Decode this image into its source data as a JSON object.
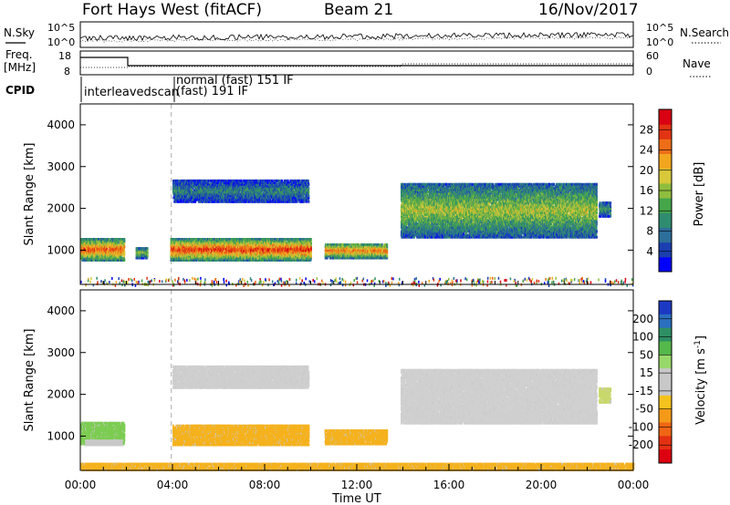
{
  "header": {
    "station": "Fort Hays West (fitACF)",
    "beam": "Beam 21",
    "date": "16/Nov/2017"
  },
  "sky_panel": {
    "left_label": "N.Sky",
    "right_label": "N.Search",
    "tick_top": "10^5",
    "tick_bottom": "10^0",
    "tick_top_right": "10^5",
    "tick_bottom_right": "10^0"
  },
  "freq_panel": {
    "left_label_line1": "Freq.",
    "left_label_line2": "[MHz]",
    "right_label": "Nave",
    "left_ticks": [
      "18",
      "8"
    ],
    "right_ticks": [
      "60",
      "0"
    ]
  },
  "cpid_panel": {
    "label": "CPID",
    "modes": [
      "interleavedscan",
      "normal (fast) 151 IF",
      "(fast) 191 IF"
    ]
  },
  "chart_data": [
    {
      "type": "heatmap",
      "panel": "power",
      "ylabel": "Slant Range [km]",
      "xlabel": "",
      "xlim": [
        0,
        24
      ],
      "ylim": [
        180,
        4500
      ],
      "y_ticks": [
        1000,
        2000,
        3000,
        4000
      ],
      "colorbar": {
        "label": "Power [dB]",
        "ticks": [
          "4",
          "8",
          "12",
          "16",
          "20",
          "24",
          "28"
        ],
        "colors": [
          "#0000ff",
          "#1a3fb0",
          "#2d6e9a",
          "#2f8c6e",
          "#45a64a",
          "#8fbd3e",
          "#d8c83a",
          "#f2a61e",
          "#ee6e18",
          "#e23414",
          "#d80012"
        ]
      },
      "regions": [
        {
          "t0": 0.0,
          "t1": 1.9,
          "r0": 750,
          "r1": 1250,
          "level": 0.7
        },
        {
          "t0": 2.4,
          "t1": 2.9,
          "r0": 800,
          "r1": 1050,
          "level": 0.4
        },
        {
          "t0": 3.9,
          "t1": 10.0,
          "r0": 750,
          "r1": 1250,
          "level": 0.75
        },
        {
          "t0": 4.0,
          "t1": 9.9,
          "r0": 2150,
          "r1": 2650,
          "level": 0.25
        },
        {
          "t0": 10.6,
          "t1": 13.3,
          "r0": 800,
          "r1": 1150,
          "level": 0.65
        },
        {
          "t0": 13.9,
          "t1": 22.4,
          "r0": 1300,
          "r1": 2600,
          "level": 0.45
        },
        {
          "t0": 22.5,
          "t1": 23.0,
          "r0": 1800,
          "r1": 2150,
          "level": 0.3
        }
      ]
    },
    {
      "type": "heatmap",
      "panel": "velocity",
      "ylabel": "Slant Range [km]",
      "xlabel": "Time UT",
      "xlim": [
        0,
        24
      ],
      "ylim": [
        180,
        4500
      ],
      "y_ticks": [
        1000,
        2000,
        3000,
        4000
      ],
      "x_ticks": [
        "00:00",
        "04:00",
        "08:00",
        "12:00",
        "16:00",
        "20:00",
        "00:00"
      ],
      "colorbar": {
        "label": "Velocity [m s^-1]",
        "ticks": [
          "200",
          "100",
          "50",
          "15",
          "-15",
          "-50",
          "-100",
          "-200"
        ],
        "colors": [
          "#1c39c4",
          "#2b6fbf",
          "#2e8f64",
          "#55b84a",
          "#98d86a",
          "#c8c8c8",
          "#c8c8c8",
          "#f5c21e",
          "#f59a18",
          "#ef6614",
          "#e43012",
          "#dc0010"
        ]
      },
      "regions": [
        {
          "t0": 0.0,
          "t1": 1.9,
          "r0": 800,
          "r1": 1300,
          "color": "#7ccd52"
        },
        {
          "t0": 0.2,
          "t1": 1.8,
          "r0": 780,
          "r1": 900,
          "color": "#c8c8c8"
        },
        {
          "t0": 4.0,
          "t1": 9.9,
          "r0": 780,
          "r1": 1250,
          "color": "#f5b21e"
        },
        {
          "t0": 4.0,
          "t1": 9.9,
          "r0": 2150,
          "r1": 2650,
          "color": "#cfcfcf"
        },
        {
          "t0": 10.6,
          "t1": 13.3,
          "r0": 800,
          "r1": 1150,
          "color": "#f5b21e"
        },
        {
          "t0": 13.9,
          "t1": 22.4,
          "r0": 1300,
          "r1": 2600,
          "color": "#d0d0d0"
        },
        {
          "t0": 22.5,
          "t1": 23.0,
          "r0": 1800,
          "r1": 2150,
          "color": "#c8d86a"
        },
        {
          "t0": 0.0,
          "t1": 24.0,
          "r0": 180,
          "r1": 350,
          "color": "#f5b21e"
        }
      ]
    }
  ]
}
